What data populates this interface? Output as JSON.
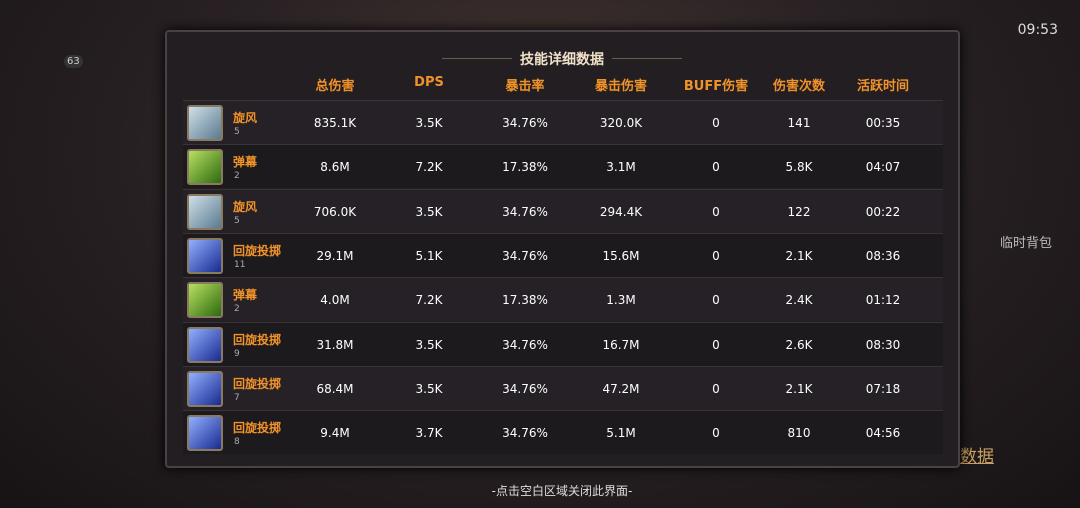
{
  "panel": {
    "title": "技能详细数据",
    "headers": [
      "总伤害",
      "DPS",
      "暴击率",
      "暴击伤害",
      "BUFF伤害",
      "伤害次数",
      "活跃时间"
    ],
    "rows": [
      {
        "name": "旋风",
        "level": 5,
        "cells": [
          "835.1K",
          "3.5K",
          "34.76%",
          "320.0K",
          0,
          141,
          "00:35"
        ]
      },
      {
        "name": "弹幕",
        "level": 2,
        "cells": [
          "8.6M",
          "7.2K",
          "17.38%",
          "3.1M",
          0,
          "5.8K",
          "04:07"
        ]
      },
      {
        "name": "旋风",
        "level": 5,
        "cells": [
          "706.0K",
          "3.5K",
          "34.76%",
          "294.4K",
          0,
          122,
          "00:22"
        ]
      },
      {
        "name": "回旋投掷",
        "level": 11,
        "cells": [
          "29.1M",
          "5.1K",
          "34.76%",
          "15.6M",
          0,
          "2.1K",
          "08:36"
        ]
      },
      {
        "name": "弹幕",
        "level": 2,
        "cells": [
          "4.0M",
          "7.2K",
          "17.38%",
          "1.3M",
          0,
          "2.4K",
          "01:12"
        ]
      },
      {
        "name": "回旋投掷",
        "level": 9,
        "cells": [
          "31.8M",
          "3.5K",
          "34.76%",
          "16.7M",
          0,
          "2.6K",
          "08:30"
        ]
      },
      {
        "name": "回旋投掷",
        "level": 7,
        "cells": [
          "68.4M",
          "3.5K",
          "34.76%",
          "47.2M",
          0,
          "2.1K",
          "07:18"
        ]
      },
      {
        "name": "回旋投掷",
        "level": 8,
        "cells": [
          "9.4M",
          "3.7K",
          "34.76%",
          "5.1M",
          0,
          810,
          "04:56"
        ]
      }
    ]
  },
  "footer": "-点击空白区域关闭此界面-",
  "background": {
    "timer": "09:53",
    "player_level": 63,
    "bag": "临时背包",
    "data_link": "数据"
  }
}
